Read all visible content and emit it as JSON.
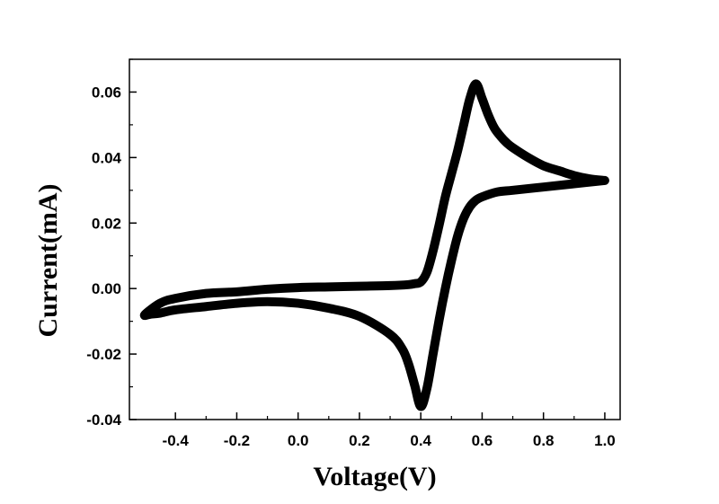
{
  "chart_data": {
    "type": "line",
    "title": "",
    "xlabel": "Voltage(V)",
    "ylabel": "Current(mA)",
    "xlim": [
      -0.55,
      1.05
    ],
    "ylim": [
      -0.04,
      0.07
    ],
    "x_ticks": [
      "-0.4",
      "-0.2",
      "0.0",
      "0.2",
      "0.4",
      "0.6",
      "0.8",
      "1.0"
    ],
    "y_ticks": [
      "-0.04",
      "-0.02",
      "0.00",
      "0.02",
      "0.04",
      "0.06"
    ],
    "grid": false,
    "legend": "none",
    "line_color": "#000000",
    "series": [
      {
        "x": [
          1.0,
          0.95,
          0.9,
          0.85,
          0.8,
          0.75,
          0.7,
          0.68,
          0.66,
          0.64,
          0.62,
          0.6,
          0.58,
          0.56,
          0.54,
          0.52,
          0.5,
          0.48,
          0.46,
          0.44,
          0.42,
          0.4,
          0.38,
          0.36,
          0.3,
          0.2,
          0.1,
          0.0,
          -0.1,
          -0.2,
          -0.3,
          -0.4,
          -0.45,
          -0.5,
          -0.48,
          -0.45,
          -0.4,
          -0.3,
          -0.2,
          -0.1,
          0.0,
          0.1,
          0.2,
          0.3,
          0.34,
          0.36,
          0.38,
          0.4,
          0.42,
          0.44,
          0.46,
          0.48,
          0.5,
          0.52,
          0.54,
          0.56,
          0.58,
          0.6,
          0.65,
          0.7,
          0.8,
          0.9,
          1.0
        ],
        "y": [
          0.033,
          0.0335,
          0.0345,
          0.036,
          0.0375,
          0.04,
          0.043,
          0.0445,
          0.0465,
          0.049,
          0.053,
          0.058,
          0.0625,
          0.058,
          0.05,
          0.042,
          0.035,
          0.028,
          0.0195,
          0.0115,
          0.005,
          0.002,
          0.0015,
          0.0012,
          0.0009,
          0.0007,
          0.0005,
          0.0003,
          -0.0002,
          -0.001,
          -0.0015,
          -0.003,
          -0.0045,
          -0.008,
          -0.0078,
          -0.0075,
          -0.0065,
          -0.0055,
          -0.0045,
          -0.004,
          -0.0045,
          -0.006,
          -0.0085,
          -0.014,
          -0.0185,
          -0.023,
          -0.0295,
          -0.036,
          -0.0305,
          -0.02,
          -0.0095,
          0.0,
          0.0085,
          0.016,
          0.0215,
          0.025,
          0.027,
          0.028,
          0.0295,
          0.03,
          0.031,
          0.032,
          0.033
        ]
      }
    ]
  }
}
